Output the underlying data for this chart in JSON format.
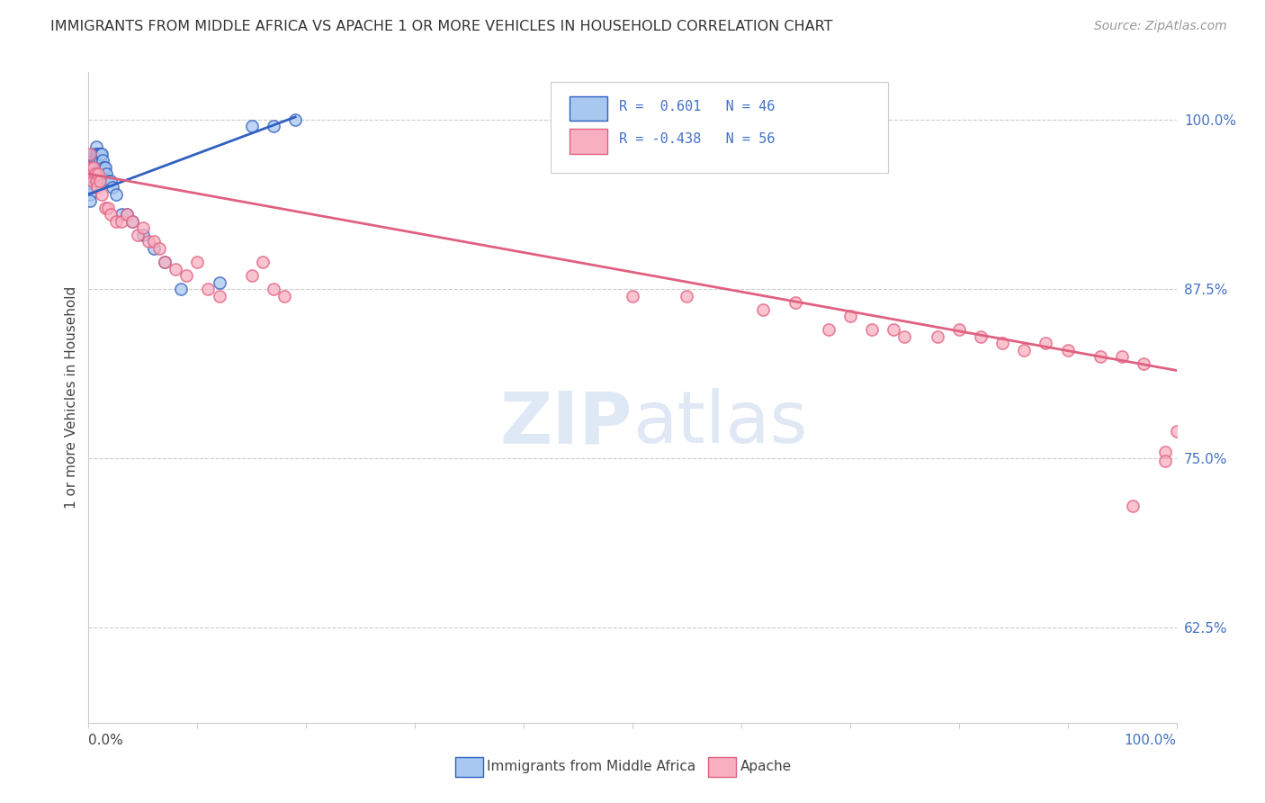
{
  "title": "IMMIGRANTS FROM MIDDLE AFRICA VS APACHE 1 OR MORE VEHICLES IN HOUSEHOLD CORRELATION CHART",
  "source": "Source: ZipAtlas.com",
  "ylabel": "1 or more Vehicles in Household",
  "ylabel_ticks": [
    "62.5%",
    "75.0%",
    "87.5%",
    "100.0%"
  ],
  "ylabel_tick_vals": [
    0.625,
    0.75,
    0.875,
    1.0
  ],
  "xmin": 0.0,
  "xmax": 1.0,
  "ymin": 0.555,
  "ymax": 1.035,
  "blue_color": "#a8c8f0",
  "pink_color": "#f8b0c0",
  "blue_line_color": "#3060c0",
  "pink_line_color": "#e06080",
  "blue_line_x0": 0.0,
  "blue_line_y0": 0.945,
  "blue_line_x1": 0.19,
  "blue_line_y1": 1.002,
  "pink_line_x0": 0.0,
  "pink_line_y0": 0.96,
  "pink_line_x1": 1.0,
  "pink_line_y1": 0.815,
  "blue_scatter_x": [
    0.001,
    0.001,
    0.001,
    0.001,
    0.001,
    0.002,
    0.002,
    0.002,
    0.002,
    0.003,
    0.003,
    0.003,
    0.004,
    0.004,
    0.005,
    0.005,
    0.006,
    0.006,
    0.007,
    0.007,
    0.008,
    0.008,
    0.009,
    0.01,
    0.01,
    0.011,
    0.012,
    0.013,
    0.014,
    0.015,
    0.016,
    0.018,
    0.02,
    0.022,
    0.025,
    0.03,
    0.035,
    0.04,
    0.05,
    0.06,
    0.07,
    0.085,
    0.12,
    0.15,
    0.17,
    0.19
  ],
  "blue_scatter_y": [
    0.96,
    0.955,
    0.95,
    0.945,
    0.94,
    0.965,
    0.96,
    0.955,
    0.95,
    0.97,
    0.965,
    0.96,
    0.97,
    0.965,
    0.975,
    0.97,
    0.975,
    0.97,
    0.98,
    0.975,
    0.975,
    0.97,
    0.975,
    0.975,
    0.97,
    0.975,
    0.975,
    0.97,
    0.965,
    0.965,
    0.96,
    0.955,
    0.955,
    0.95,
    0.945,
    0.93,
    0.93,
    0.925,
    0.915,
    0.905,
    0.895,
    0.875,
    0.88,
    0.995,
    0.995,
    1.0
  ],
  "pink_scatter_x": [
    0.001,
    0.002,
    0.003,
    0.004,
    0.005,
    0.006,
    0.007,
    0.008,
    0.009,
    0.01,
    0.012,
    0.015,
    0.018,
    0.02,
    0.025,
    0.03,
    0.035,
    0.04,
    0.045,
    0.05,
    0.055,
    0.06,
    0.065,
    0.07,
    0.08,
    0.09,
    0.1,
    0.11,
    0.12,
    0.15,
    0.16,
    0.17,
    0.18,
    0.5,
    0.55,
    0.62,
    0.65,
    0.68,
    0.7,
    0.72,
    0.74,
    0.75,
    0.78,
    0.8,
    0.82,
    0.84,
    0.86,
    0.88,
    0.9,
    0.93,
    0.95,
    0.97,
    0.99,
    1.0,
    0.96,
    0.99
  ],
  "pink_scatter_y": [
    0.975,
    0.965,
    0.96,
    0.955,
    0.965,
    0.96,
    0.955,
    0.95,
    0.96,
    0.955,
    0.945,
    0.935,
    0.935,
    0.93,
    0.925,
    0.925,
    0.93,
    0.925,
    0.915,
    0.92,
    0.91,
    0.91,
    0.905,
    0.895,
    0.89,
    0.885,
    0.895,
    0.875,
    0.87,
    0.885,
    0.895,
    0.875,
    0.87,
    0.87,
    0.87,
    0.86,
    0.865,
    0.845,
    0.855,
    0.845,
    0.845,
    0.84,
    0.84,
    0.845,
    0.84,
    0.835,
    0.83,
    0.835,
    0.83,
    0.825,
    0.825,
    0.82,
    0.755,
    0.77,
    0.715,
    0.748
  ]
}
